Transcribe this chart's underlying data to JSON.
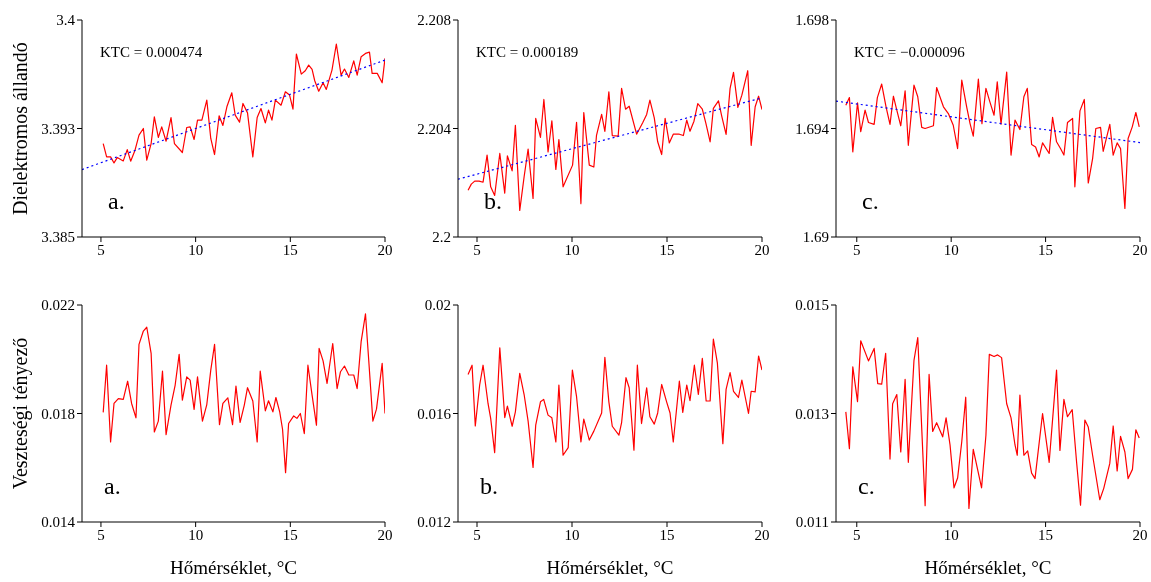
{
  "chart_data": [
    {
      "type": "line",
      "ylabel": "Dielektromos állandó",
      "annotations": [
        "KTC = 0.000474",
        "a."
      ],
      "xlim": [
        4,
        20
      ],
      "xticks": [
        5,
        10,
        15,
        20
      ],
      "ylim": [
        3.385,
        3.4
      ],
      "yticks": [
        3.385,
        {
          "value": 3.3925,
          "label": "3.393"
        },
        3.4
      ],
      "series": [
        {
          "type": "line",
          "color": "#ff0000",
          "x": [
            5.12,
            5.3,
            5.51,
            5.69,
            5.86,
            6.18,
            6.39,
            6.57,
            6.8,
            7.01,
            7.24,
            7.42,
            7.65,
            7.82,
            8.03,
            8.21,
            8.44,
            8.7,
            8.88,
            9.3,
            9.53,
            9.71,
            9.92,
            10.1,
            10.33,
            10.59,
            10.8,
            11.0,
            11.24,
            11.44,
            11.65,
            11.91,
            12.09,
            12.32,
            12.5,
            12.74,
            13.02,
            13.25,
            13.45,
            13.68,
            13.85,
            14.03,
            14.21,
            14.51,
            14.74,
            14.96,
            15.14,
            15.32,
            15.58,
            15.79,
            15.97,
            16.15,
            16.29,
            16.5,
            16.73,
            16.9,
            17.2,
            17.43,
            17.68,
            17.86,
            18.09,
            18.35,
            18.53,
            18.74,
            18.97,
            19.18,
            19.32,
            19.59,
            19.85,
            20.0
          ],
          "values": [
            3.39146,
            3.39054,
            3.39054,
            3.39012,
            3.39049,
            3.39026,
            3.39104,
            3.39024,
            3.391,
            3.39204,
            3.3925,
            3.39031,
            3.39146,
            3.39331,
            3.39188,
            3.39261,
            3.39162,
            3.39326,
            3.39146,
            3.39084,
            3.39257,
            3.39261,
            3.39174,
            3.39308,
            3.39308,
            3.39446,
            3.39181,
            3.3907,
            3.39338,
            3.39271,
            3.394,
            3.39497,
            3.39342,
            3.39294,
            3.39423,
            3.39358,
            3.39054,
            3.39326,
            3.39388,
            3.39289,
            3.39377,
            3.39308,
            3.39446,
            3.39411,
            3.39504,
            3.39481,
            3.39384,
            3.39765,
            3.39626,
            3.39649,
            3.39688,
            3.39658,
            3.3958,
            3.39508,
            3.39566,
            3.3952,
            3.39654,
            3.39834,
            3.39619,
            3.39661,
            3.39603,
            3.39718,
            3.39619,
            3.39746,
            3.39769,
            3.39778,
            3.39631,
            3.39631,
            3.39566,
            3.39735
          ]
        },
        {
          "type": "line",
          "color": "#0000ff",
          "line_style": "dotted",
          "x": [
            4,
            20
          ],
          "values": [
            3.38966,
            3.39723
          ]
        }
      ]
    },
    {
      "type": "line",
      "annotations": [
        "KTC = 0.000189",
        "b."
      ],
      "xlim": [
        4,
        20
      ],
      "xticks": [
        5,
        10,
        15,
        20
      ],
      "ylim": [
        2.2,
        2.208
      ],
      "yticks": [
        2.2,
        2.204,
        2.208
      ],
      "series": [
        {
          "type": "line",
          "color": "#ff0000",
          "x": [
            4.53,
            4.7,
            4.88,
            5.11,
            5.32,
            5.53,
            5.72,
            5.93,
            6.2,
            6.46,
            6.6,
            6.85,
            7.02,
            7.25,
            7.48,
            7.69,
            7.95,
            8.09,
            8.34,
            8.52,
            8.74,
            8.94,
            9.15,
            9.31,
            9.53,
            10.03,
            10.24,
            10.47,
            10.62,
            10.91,
            11.15,
            11.29,
            11.56,
            11.73,
            11.94,
            12.12,
            12.43,
            12.61,
            12.82,
            13.01,
            13.4,
            13.72,
            13.93,
            14.1,
            14.33,
            14.51,
            14.72,
            14.9,
            15.12,
            15.33,
            15.65,
            15.86,
            16.04,
            16.21,
            16.42,
            16.62,
            16.86,
            17.05,
            17.27,
            17.44,
            17.71,
            17.88,
            18.11,
            18.32,
            18.5,
            18.73,
            18.94,
            19.25,
            19.43,
            19.64,
            19.82,
            20.0
          ],
          "values": [
            2.20172,
            2.20195,
            2.20206,
            2.20206,
            2.20202,
            2.20302,
            2.20185,
            2.20153,
            2.20308,
            2.20162,
            2.20299,
            2.20244,
            2.20412,
            2.20098,
            2.20222,
            2.20324,
            2.20142,
            2.20437,
            2.20367,
            2.20507,
            2.20314,
            2.20428,
            2.20249,
            2.20359,
            2.20185,
            2.20265,
            2.20423,
            2.20123,
            2.20459,
            2.20265,
            2.20258,
            2.20375,
            2.20452,
            2.20389,
            2.20535,
            2.20374,
            2.20372,
            2.20548,
            2.20471,
            2.20482,
            2.20379,
            2.20421,
            2.20452,
            2.20505,
            2.20439,
            2.20351,
            2.20304,
            2.20437,
            2.20347,
            2.20379,
            2.20379,
            2.20374,
            2.20431,
            2.2039,
            2.20427,
            2.20492,
            2.20471,
            2.20418,
            2.20351,
            2.20474,
            2.20502,
            2.20446,
            2.20378,
            2.20548,
            2.20607,
            2.20478,
            2.20523,
            2.20613,
            2.20338,
            2.2048,
            2.20519,
            2.2047
          ]
        },
        {
          "type": "line",
          "color": "#0000ff",
          "line_style": "dotted",
          "x": [
            4,
            20
          ],
          "values": [
            2.20213,
            2.20513
          ]
        }
      ]
    },
    {
      "type": "line",
      "annotations": [
        "KTC = −0.000096",
        "c."
      ],
      "xlim": [
        3.9,
        20
      ],
      "xticks": [
        5,
        10,
        15,
        20
      ],
      "ylim": [
        1.69,
        1.698
      ],
      "yticks": [
        1.69,
        1.694,
        1.698
      ],
      "series": [
        {
          "type": "line",
          "color": "#ff0000",
          "x": [
            4.42,
            4.61,
            4.79,
            5.04,
            5.21,
            5.44,
            5.62,
            5.92,
            6.09,
            6.32,
            6.55,
            6.76,
            6.94,
            7.12,
            7.33,
            7.56,
            7.73,
            8.03,
            8.23,
            8.44,
            8.62,
            9.06,
            9.23,
            9.59,
            9.85,
            10.11,
            10.34,
            10.56,
            10.82,
            11.0,
            11.17,
            11.44,
            11.63,
            11.84,
            12.05,
            12.27,
            12.44,
            12.64,
            12.94,
            13.17,
            13.38,
            13.64,
            13.85,
            14.03,
            14.26,
            14.47,
            14.66,
            14.84,
            15.19,
            15.37,
            15.58,
            15.79,
            15.97,
            16.16,
            16.43,
            16.55,
            16.82,
            17.05,
            17.26,
            17.49,
            17.66,
            17.91,
            18.05,
            18.4,
            18.58,
            18.79,
            18.97,
            19.2,
            19.37,
            19.59,
            19.78,
            19.96
          ],
          "values": [
            1.69486,
            1.69514,
            1.69314,
            1.69495,
            1.69388,
            1.69468,
            1.69422,
            1.69415,
            1.69514,
            1.69564,
            1.6948,
            1.69415,
            1.69519,
            1.69468,
            1.6941,
            1.69539,
            1.69338,
            1.6956,
            1.69517,
            1.69404,
            1.694,
            1.6941,
            1.69551,
            1.6948,
            1.69455,
            1.69412,
            1.69326,
            1.69578,
            1.6948,
            1.69418,
            1.69372,
            1.69582,
            1.69418,
            1.69548,
            1.69498,
            1.69449,
            1.69572,
            1.69416,
            1.69608,
            1.69302,
            1.69431,
            1.69396,
            1.69517,
            1.69548,
            1.69341,
            1.69332,
            1.69295,
            1.69347,
            1.69308,
            1.69441,
            1.69351,
            1.69326,
            1.69302,
            1.69422,
            1.69437,
            1.69185,
            1.69465,
            1.69507,
            1.69199,
            1.69289,
            1.694,
            1.69404,
            1.69316,
            1.69415,
            1.69302,
            1.69347,
            1.69326,
            1.69105,
            1.69363,
            1.69406,
            1.69459,
            1.69406
          ]
        },
        {
          "type": "line",
          "color": "#0000ff",
          "line_style": "dotted",
          "x": [
            3.9,
            20
          ],
          "values": [
            1.69501,
            1.69348
          ]
        }
      ]
    },
    {
      "type": "line",
      "xlabel": "Hőmérséklet, °C",
      "ylabel": "Veszteségi tényező",
      "annotations": [
        "a."
      ],
      "xlim": [
        4,
        20
      ],
      "xticks": [
        5,
        10,
        15,
        20
      ],
      "ylim": [
        0.014,
        0.022
      ],
      "yticks": [
        0.014,
        0.018,
        0.022
      ],
      "series": [
        {
          "type": "line",
          "color": "#ff0000",
          "x": [
            5.12,
            5.3,
            5.51,
            5.69,
            5.92,
            6.18,
            6.41,
            6.62,
            6.85,
            7.01,
            7.24,
            7.42,
            7.65,
            7.82,
            8.03,
            8.25,
            8.44,
            8.7,
            8.92,
            9.13,
            9.3,
            9.53,
            9.71,
            9.92,
            10.1,
            10.36,
            10.59,
            10.8,
            11.0,
            11.26,
            11.44,
            11.7,
            11.95,
            12.13,
            12.35,
            12.57,
            12.74,
            13.02,
            13.25,
            13.41,
            13.68,
            13.85,
            14.08,
            14.24,
            14.44,
            14.59,
            14.75,
            14.91,
            15.18,
            15.35,
            15.53,
            15.74,
            15.93,
            16.15,
            16.38,
            16.52,
            16.73,
            16.94,
            17.24,
            17.47,
            17.65,
            17.86,
            18.09,
            18.35,
            18.53,
            18.74,
            18.97,
            19.14,
            19.36,
            19.55,
            19.85,
            20.0
          ],
          "values": [
            0.01804,
            0.01978,
            0.01695,
            0.01837,
            0.01855,
            0.01852,
            0.01919,
            0.01837,
            0.01784,
            0.02055,
            0.02104,
            0.02118,
            0.02022,
            0.01732,
            0.01772,
            0.01956,
            0.01722,
            0.01831,
            0.01905,
            0.02018,
            0.01849,
            0.01935,
            0.01923,
            0.01815,
            0.01935,
            0.01772,
            0.01833,
            0.0196,
            0.02055,
            0.01759,
            0.01837,
            0.01858,
            0.01759,
            0.01901,
            0.01767,
            0.01831,
            0.01895,
            0.01846,
            0.01695,
            0.01956,
            0.0181,
            0.01847,
            0.01806,
            0.01859,
            0.01806,
            0.01742,
            0.01582,
            0.01763,
            0.01791,
            0.01782,
            0.018,
            0.01726,
            0.01978,
            0.01868,
            0.01757,
            0.0204,
            0.01994,
            0.01911,
            0.02058,
            0.01892,
            0.01954,
            0.01975,
            0.01942,
            0.01942,
            0.01892,
            0.02065,
            0.02167,
            0.01997,
            0.01772,
            0.01816,
            0.01985,
            0.018
          ]
        }
      ]
    },
    {
      "type": "line",
      "xlabel": "Hőmérséklet, °C",
      "annotations": [
        "b."
      ],
      "xlim": [
        4,
        20
      ],
      "xticks": [
        5,
        10,
        15,
        20
      ],
      "ylim": [
        0.012,
        0.02
      ],
      "yticks": [
        0.012,
        0.016,
        0.02
      ],
      "series": [
        {
          "type": "line",
          "color": "#ff0000",
          "x": [
            4.53,
            4.74,
            4.91,
            5.14,
            5.32,
            5.58,
            5.72,
            5.93,
            6.2,
            6.46,
            6.6,
            6.85,
            7.02,
            7.25,
            7.48,
            7.69,
            7.95,
            8.09,
            8.34,
            8.51,
            8.74,
            8.94,
            9.15,
            9.31,
            9.53,
            9.8,
            10.02,
            10.24,
            10.47,
            10.62,
            10.91,
            11.15,
            11.56,
            11.73,
            11.94,
            12.12,
            12.47,
            12.61,
            12.84,
            13.01,
            13.26,
            13.44,
            13.66,
            13.93,
            14.1,
            14.33,
            14.51,
            14.72,
            14.98,
            15.16,
            15.33,
            15.65,
            15.83,
            16.04,
            16.21,
            16.44,
            16.65,
            16.86,
            17.06,
            17.27,
            17.44,
            17.65,
            17.94,
            18.11,
            18.32,
            18.5,
            18.76,
            18.94,
            19.29,
            19.43,
            19.64,
            19.82,
            20.0
          ],
          "values": [
            0.01744,
            0.01778,
            0.01554,
            0.01705,
            0.01778,
            0.01637,
            0.01582,
            0.01456,
            0.01842,
            0.01585,
            0.01627,
            0.01553,
            0.01606,
            0.01748,
            0.0167,
            0.01572,
            0.01401,
            0.01557,
            0.01643,
            0.01652,
            0.01594,
            0.01584,
            0.01495,
            0.01705,
            0.01446,
            0.01474,
            0.0176,
            0.01662,
            0.01495,
            0.01579,
            0.01502,
            0.01535,
            0.01602,
            0.01807,
            0.01643,
            0.01553,
            0.0152,
            0.01566,
            0.01732,
            0.01695,
            0.01465,
            0.01778,
            0.01563,
            0.01695,
            0.01588,
            0.01561,
            0.01602,
            0.01707,
            0.01643,
            0.01602,
            0.01495,
            0.01719,
            0.01604,
            0.01705,
            0.01647,
            0.01778,
            0.0167,
            0.01803,
            0.01646,
            0.01646,
            0.01874,
            0.01787,
            0.01489,
            0.01689,
            0.01751,
            0.01682,
            0.01659,
            0.01723,
            0.016,
            0.01682,
            0.0168,
            0.01812,
            0.0176
          ]
        }
      ]
    },
    {
      "type": "line",
      "xlabel": "Hőmérséklet, °C",
      "annotations": [
        "c."
      ],
      "xlim": [
        3.9,
        20
      ],
      "xticks": [
        5,
        10,
        15,
        20
      ],
      "ylim": [
        0.011,
        0.015
      ],
      "yticks": [
        0.011,
        0.013,
        0.015
      ],
      "series": [
        {
          "type": "line",
          "color": "#ff0000",
          "x": [
            4.42,
            4.61,
            4.79,
            5.04,
            5.21,
            5.62,
            5.92,
            6.11,
            6.32,
            6.53,
            6.76,
            6.9,
            7.12,
            7.33,
            7.56,
            7.73,
            8.03,
            8.23,
            8.62,
            8.83,
            9.02,
            9.23,
            9.55,
            9.73,
            9.94,
            10.15,
            10.34,
            10.56,
            10.77,
            10.94,
            11.17,
            11.61,
            11.84,
            12.02,
            12.27,
            12.46,
            12.67,
            12.94,
            13.17,
            13.38,
            13.5,
            13.64,
            13.85,
            14.05,
            14.26,
            14.44,
            14.84,
            15.19,
            15.58,
            15.76,
            15.97,
            16.16,
            16.41,
            16.64,
            16.85,
            17.08,
            17.26,
            17.49,
            17.87,
            18.08,
            18.4,
            18.58,
            18.79,
            18.97,
            19.2,
            19.37,
            19.6,
            19.78,
            19.96
          ],
          "values": [
            0.01303,
            0.01235,
            0.01386,
            0.01322,
            0.01434,
            0.01397,
            0.0142,
            0.01355,
            0.01354,
            0.01411,
            0.01216,
            0.01318,
            0.01335,
            0.01229,
            0.01363,
            0.0121,
            0.01398,
            0.0144,
            0.0113,
            0.01372,
            0.01267,
            0.01283,
            0.01257,
            0.01292,
            0.01242,
            0.01163,
            0.01181,
            0.01248,
            0.0133,
            0.01125,
            0.01234,
            0.01163,
            0.0126,
            0.01409,
            0.01405,
            0.01408,
            0.01403,
            0.01318,
            0.01292,
            0.01242,
            0.01223,
            0.01334,
            0.01223,
            0.01231,
            0.0119,
            0.0118,
            0.013,
            0.0121,
            0.0138,
            0.01232,
            0.01326,
            0.01294,
            0.01307,
            0.01211,
            0.01131,
            0.01288,
            0.01275,
            0.01223,
            0.01141,
            0.01162,
            0.01208,
            0.01277,
            0.01194,
            0.01258,
            0.01229,
            0.0118,
            0.01197,
            0.0127,
            0.01255
          ]
        }
      ]
    }
  ]
}
